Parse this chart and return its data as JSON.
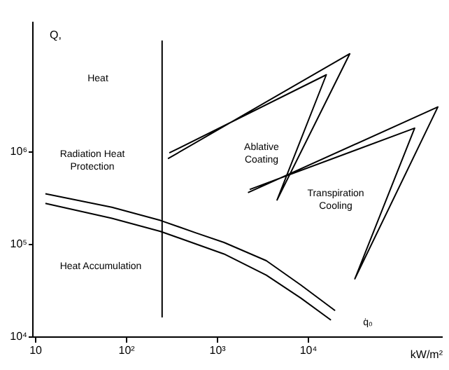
{
  "chart_data": {
    "type": "line",
    "xlabel": "kW/m²",
    "ylabel": "Q,",
    "log": "xy",
    "grid": false,
    "marker": "none",
    "line_style": "solid",
    "xlim": [
      9.3,
      300000
    ],
    "ylim": [
      10000,
      26000000
    ],
    "xticks": [
      {
        "value": 10,
        "label": "10"
      },
      {
        "value": 100,
        "label": "10²"
      },
      {
        "value": 1000,
        "label": "10³"
      },
      {
        "value": 10000,
        "label": "10⁴"
      }
    ],
    "yticks": [
      {
        "value": 10000,
        "label": "10⁴"
      },
      {
        "value": 100000,
        "label": "10⁵"
      },
      {
        "value": 1000000,
        "label": "10⁶"
      }
    ],
    "series": [
      {
        "color": "#000000",
        "x": [
          13,
          70,
          240,
          590,
          1200,
          3500,
          8400,
          20000
        ],
        "values": [
          350000,
          250000,
          180000,
          132000,
          104000,
          66000,
          36000,
          19000
        ]
      },
      {
        "color": "#000000",
        "x": [
          13,
          70,
          240,
          1200,
          3500,
          8400,
          18000
        ],
        "values": [
          275000,
          190000,
          137000,
          78000,
          46000,
          26000,
          15000
        ]
      },
      {
        "color": "#000000",
        "x": [
          250,
          250
        ],
        "values": [
          16000,
          16000000
        ]
      },
      {
        "color": "#000000",
        "x": [
          290,
          29000,
          4600,
          16000,
          300
        ],
        "values": [
          840000,
          11500000,
          300000,
          6800000,
          970000
        ]
      },
      {
        "color": "#000000",
        "x": [
          2200,
          270000,
          33000,
          150000,
          2300
        ],
        "values": [
          360000,
          3050000,
          42000,
          1800000,
          390000
        ]
      }
    ],
    "annotations": [
      "Heat",
      "Radiation Heat\nProtection",
      "Heat Accumulation",
      "Ablative\nCoating",
      "Transpiration\nCooling",
      "q̇₀"
    ]
  }
}
